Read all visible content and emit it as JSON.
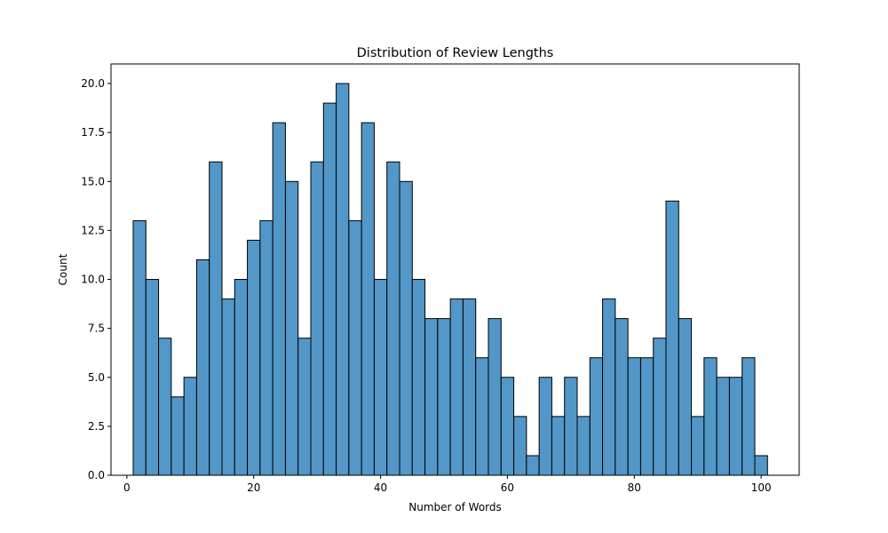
{
  "chart_data": {
    "type": "bar",
    "title": "Distribution of Review Lengths",
    "xlabel": "Number of Words",
    "ylabel": "Count",
    "bin_start": 1,
    "bin_width": 2,
    "values": [
      13,
      10,
      7,
      4,
      5,
      11,
      16,
      9,
      10,
      12,
      13,
      18,
      15,
      7,
      16,
      19,
      20,
      13,
      18,
      10,
      16,
      15,
      10,
      8,
      8,
      9,
      9,
      6,
      8,
      5,
      3,
      1,
      5,
      3,
      5,
      3,
      6,
      9,
      8,
      6,
      6,
      7,
      14,
      8,
      3,
      6,
      5,
      5,
      6,
      1
    ],
    "xlim": [
      -2.5,
      106.0
    ],
    "ylim": [
      0,
      21.0
    ],
    "xticks": [
      0,
      20,
      40,
      60,
      80,
      100
    ],
    "yticks": [
      0.0,
      2.5,
      5.0,
      7.5,
      10.0,
      12.5,
      15.0,
      17.5,
      20.0
    ],
    "bar_color": "#5297c8",
    "edge_color": "#000000",
    "grid": false
  }
}
